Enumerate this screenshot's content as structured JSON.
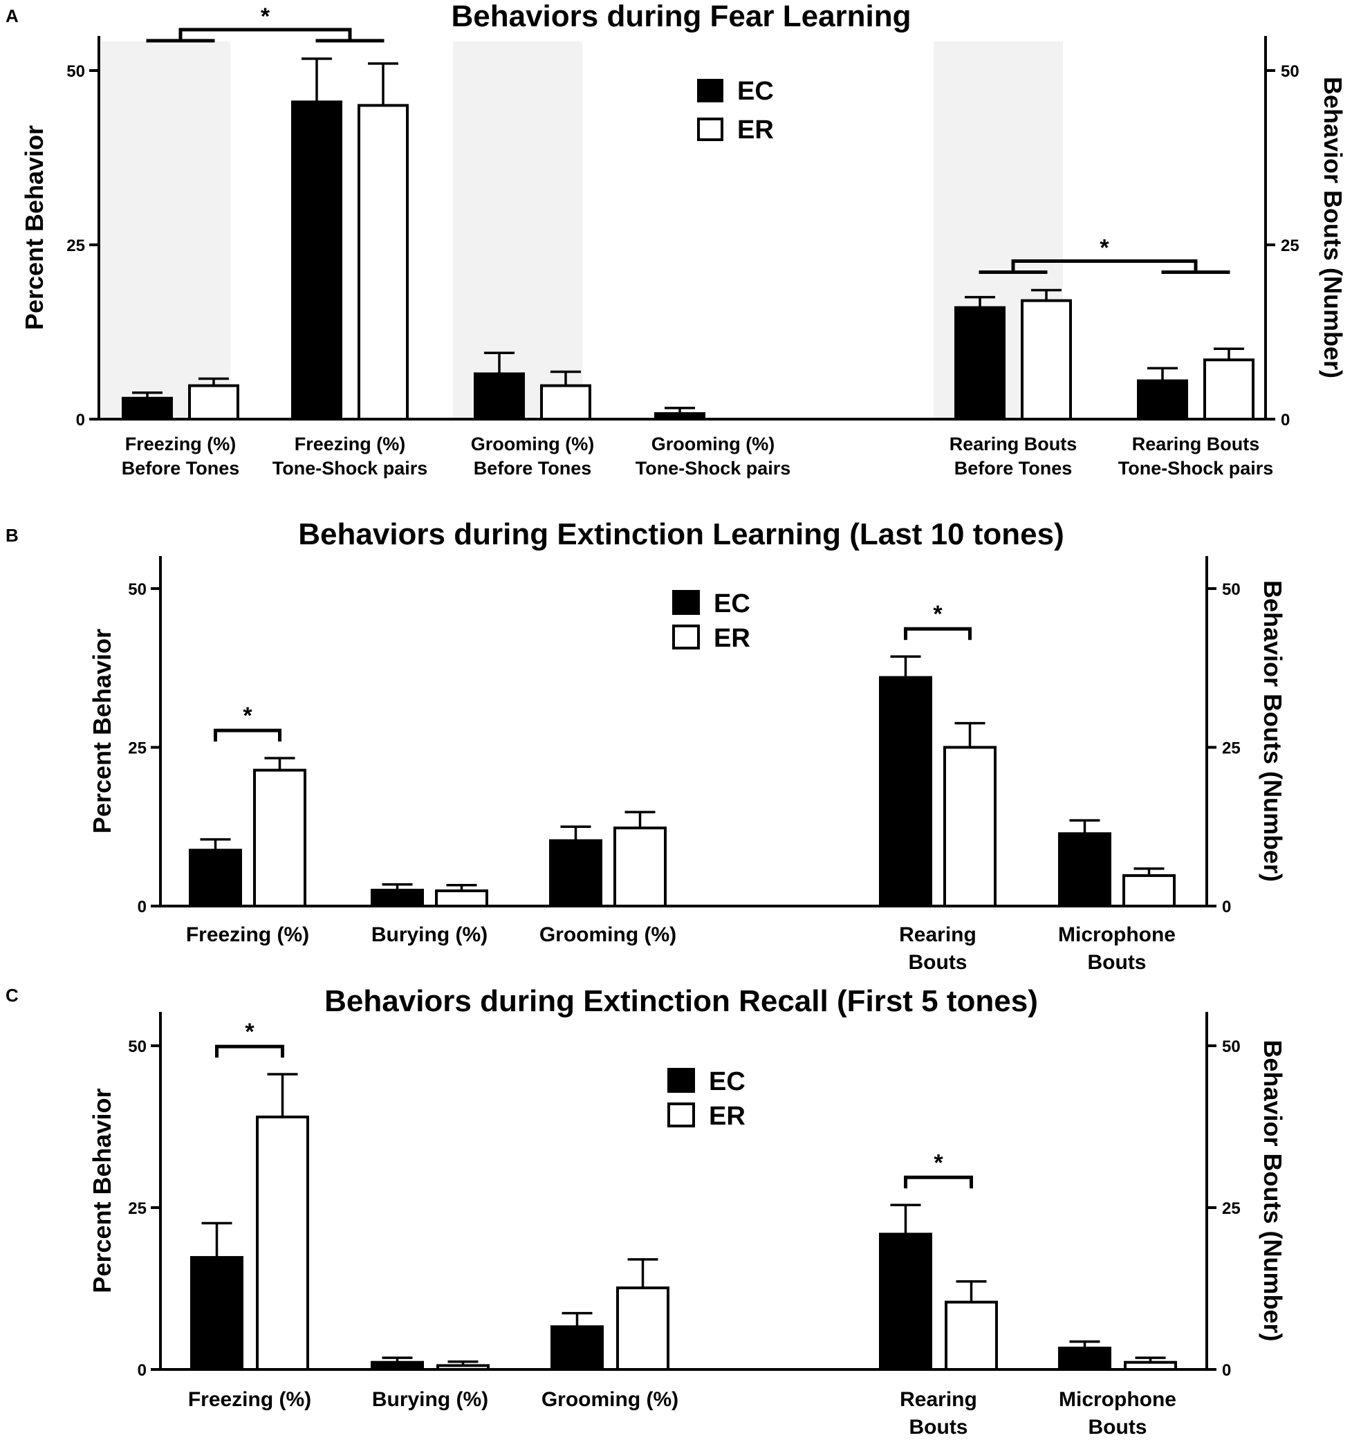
{
  "chart_data": [
    {
      "panel": "A",
      "type": "bar",
      "title": "Behaviors during Fear Learning",
      "ylabel": "Percent Behavior",
      "y2label": "Behavior Bouts (Number)",
      "ylim": [
        0,
        55
      ],
      "yticks": [
        0,
        25,
        50
      ],
      "y2ticks": [
        0,
        25,
        50
      ],
      "legend": {
        "position": "top-center",
        "entries": [
          {
            "label": "EC",
            "fill": "#000000"
          },
          {
            "label": "ER",
            "fill": "#ffffff"
          }
        ]
      },
      "series": [
        {
          "name": "EC",
          "values": [
            3,
            45.5,
            6.5,
            0.8,
            16,
            5.5
          ],
          "errors": [
            0.8,
            6.2,
            3,
            0.8,
            1.5,
            1.8
          ]
        },
        {
          "name": "ER",
          "values": [
            4.8,
            45,
            4.8,
            0,
            17,
            8.5
          ],
          "errors": [
            1,
            6,
            2,
            0,
            1.5,
            1.6
          ]
        }
      ],
      "categories": [
        {
          "lines": [
            "Freezing (%)",
            "Before Tones"
          ],
          "shaded": true
        },
        {
          "lines": [
            "Freezing (%)",
            "Tone-Shock pairs"
          ],
          "shaded": false
        },
        {
          "lines": [
            "Grooming (%)",
            "Before Tones"
          ],
          "shaded": true
        },
        {
          "lines": [
            "Grooming (%)",
            "Tone-Shock pairs"
          ],
          "shaded": false
        },
        {
          "lines": [
            "Rearing Bouts",
            "Before Tones"
          ],
          "shaded": true
        },
        {
          "lines": [
            "Rearing Bouts",
            "Tone-Shock pairs"
          ],
          "shaded": false
        }
      ],
      "significance": [
        {
          "type": "between-groups",
          "from": 0,
          "to": 1,
          "label": "*"
        },
        {
          "type": "between-groups",
          "from": 4,
          "to": 5,
          "label": "*"
        }
      ]
    },
    {
      "panel": "B",
      "type": "bar",
      "title": "Behaviors during Extinction Learning (Last 10 tones)",
      "ylabel": "Percent Behavior",
      "y2label": "Behavior Bouts (Number)",
      "ylim": [
        0,
        55
      ],
      "yticks": [
        0,
        25,
        50
      ],
      "y2ticks": [
        0,
        25,
        50
      ],
      "legend": {
        "position": "top-center",
        "entries": [
          {
            "label": "EC",
            "fill": "#000000"
          },
          {
            "label": "ER",
            "fill": "#ffffff"
          }
        ]
      },
      "series": [
        {
          "name": "EC",
          "values": [
            8.8,
            2.5,
            10.3,
            36,
            11.4
          ],
          "errors": [
            1.7,
            0.9,
            2.2,
            3.3,
            2.1
          ]
        },
        {
          "name": "ER",
          "values": [
            21.4,
            2.4,
            12.3,
            25,
            4.8
          ],
          "errors": [
            1.9,
            0.9,
            2.5,
            3.8,
            1.1
          ]
        }
      ],
      "categories": [
        {
          "lines": [
            "Freezing (%)"
          ]
        },
        {
          "lines": [
            "Burying (%)"
          ]
        },
        {
          "lines": [
            "Grooming (%)"
          ]
        },
        {
          "lines": [
            "Rearing",
            "Bouts"
          ]
        },
        {
          "lines": [
            "Microphone",
            "Bouts"
          ]
        }
      ],
      "significance": [
        {
          "type": "within-group",
          "category": 0,
          "label": "*"
        },
        {
          "type": "within-group",
          "category": 3,
          "label": "*"
        }
      ]
    },
    {
      "panel": "C",
      "type": "bar",
      "title": "Behaviors during Extinction Recall (First 5 tones)",
      "ylabel": "Percent Behavior",
      "y2label": "Behavior Bouts (Number)",
      "ylim": [
        0,
        55
      ],
      "yticks": [
        0,
        25,
        50
      ],
      "y2ticks": [
        0,
        25,
        50
      ],
      "legend": {
        "position": "top-center",
        "entries": [
          {
            "label": "EC",
            "fill": "#000000"
          },
          {
            "label": "ER",
            "fill": "#ffffff"
          }
        ]
      },
      "series": [
        {
          "name": "EC",
          "values": [
            17.3,
            1.1,
            6.6,
            20.9,
            3.3
          ],
          "errors": [
            5.3,
            0.7,
            2.1,
            4.5,
            1.0
          ]
        },
        {
          "name": "ER",
          "values": [
            39,
            0.6,
            12.6,
            10.4,
            1.1
          ],
          "errors": [
            6.6,
            0.6,
            4.4,
            3.2,
            0.7
          ]
        }
      ],
      "categories": [
        {
          "lines": [
            "Freezing (%)"
          ]
        },
        {
          "lines": [
            "Burying (%)"
          ]
        },
        {
          "lines": [
            "Grooming (%)"
          ]
        },
        {
          "lines": [
            "Rearing",
            "Bouts"
          ]
        },
        {
          "lines": [
            "Microphone",
            "Bouts"
          ]
        }
      ],
      "significance": [
        {
          "type": "within-group",
          "category": 0,
          "label": "*"
        },
        {
          "type": "within-group",
          "category": 3,
          "label": "*"
        }
      ]
    }
  ]
}
